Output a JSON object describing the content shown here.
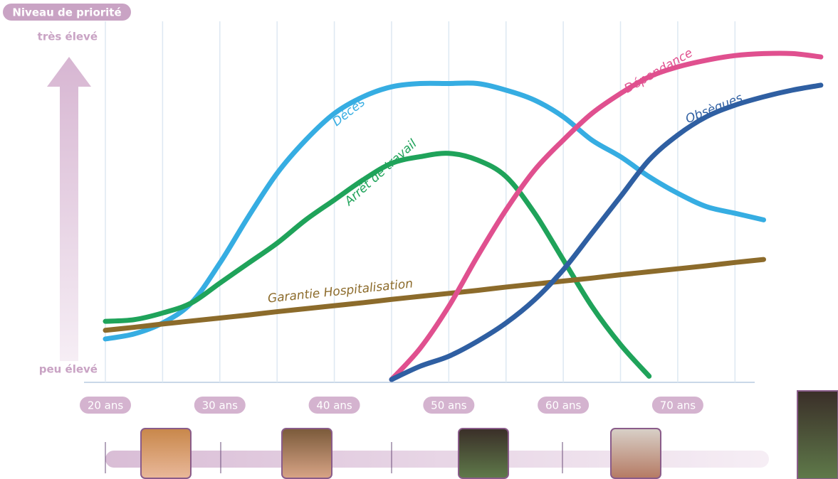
{
  "chart_data": {
    "type": "line",
    "ylabel": "Niveau de priorité",
    "x": [
      20,
      22.5,
      25,
      27.5,
      30,
      32.5,
      35,
      37.5,
      40,
      42.5,
      45,
      47.5,
      50,
      52.5,
      55,
      57.5,
      60,
      62.5,
      65,
      67.5,
      70,
      72.5,
      75,
      77.5,
      80,
      82.5
    ],
    "series": [
      {
        "name": "Décès",
        "color": "#36ade2",
        "values": [
          9.2,
          10.7,
          14,
          20,
          32,
          46,
          59,
          69,
          77,
          82,
          85,
          86,
          86,
          86,
          84,
          81,
          76,
          69,
          64,
          58,
          53,
          49,
          47,
          45,
          null,
          null
        ]
      },
      {
        "name": "Arrêt de travail",
        "color": "#1fa35a",
        "values": [
          14.5,
          15,
          17,
          20,
          26,
          32,
          38,
          45,
          51,
          57,
          62,
          64,
          65,
          63,
          58,
          47,
          33,
          19,
          7.5,
          -2,
          null,
          null,
          null,
          null,
          null,
          null
        ]
      },
      {
        "name": "Garantie Hospitalisation",
        "color": "#8c6b2b",
        "values": [
          11.8,
          12.7,
          13.7,
          14.6,
          15.5,
          16.4,
          17.4,
          18.3,
          19.2,
          20.1,
          21.1,
          22,
          22.9,
          23.8,
          24.8,
          25.7,
          26.6,
          27.5,
          28.5,
          29.4,
          30.3,
          31.2,
          32.2,
          33.1,
          null,
          null
        ]
      },
      {
        "name": "Dépendance",
        "color": "#e0508f",
        "values": [
          null,
          null,
          null,
          null,
          null,
          null,
          null,
          null,
          null,
          null,
          -3,
          6.4,
          19,
          34,
          48,
          60,
          69,
          77,
          83,
          88,
          91,
          93,
          94.4,
          95,
          95,
          94
        ]
      },
      {
        "name": "Obsèques",
        "color": "#2f5fa2",
        "values": [
          null,
          null,
          null,
          null,
          null,
          null,
          null,
          null,
          null,
          null,
          -3,
          1,
          4,
          8.5,
          14,
          21,
          30,
          41,
          52,
          63,
          70.5,
          76,
          79.5,
          82,
          84,
          85.5
        ]
      }
    ],
    "xlim": [
      20,
      84
    ],
    "xticks": [
      {
        "value": 20,
        "label": "20 ans"
      },
      {
        "value": 30,
        "label": "30 ans"
      },
      {
        "value": 40,
        "label": "40 ans"
      },
      {
        "value": 50,
        "label": "50 ans"
      },
      {
        "value": 60,
        "label": "60 ans"
      },
      {
        "value": 70,
        "label": "70 ans"
      }
    ],
    "xminorticks": [
      25,
      35,
      45,
      55,
      65,
      75
    ],
    "ylim": [
      0,
      100
    ],
    "yticks": [
      {
        "value": 0,
        "label": "peu élevé"
      },
      {
        "value": 100,
        "label": "très élevé"
      }
    ],
    "grid": true
  }
}
